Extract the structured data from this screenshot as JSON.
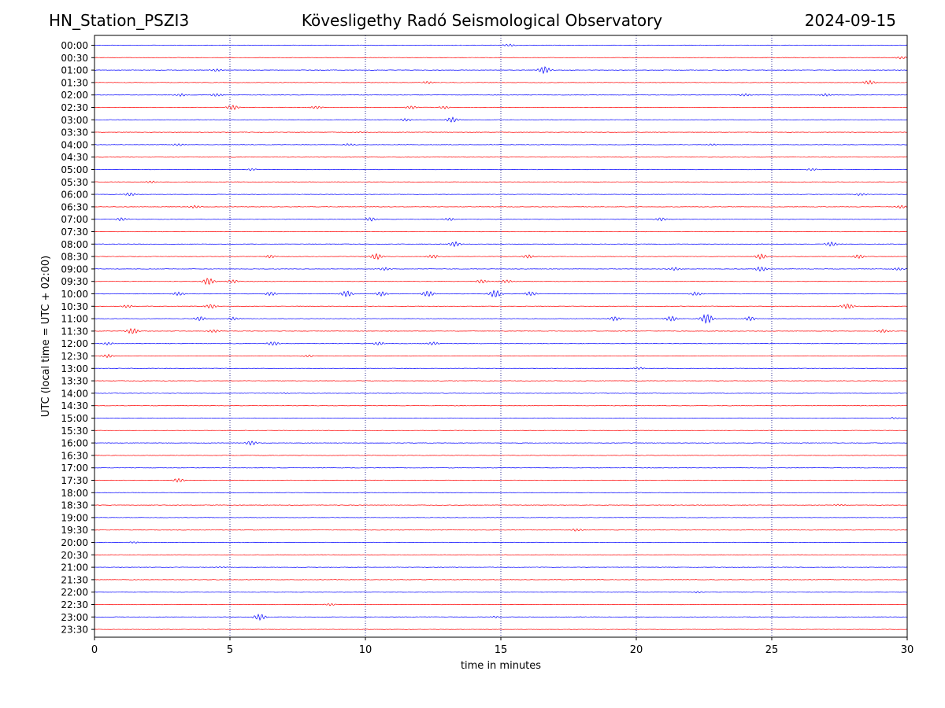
{
  "header": {
    "station": "HN_Station_PSZI3",
    "observatory": "Kövesligethy Radó Seismological Observatory",
    "date": "2024-09-15"
  },
  "chart_data": {
    "type": "line",
    "title": "Kövesligethy Radó Seismological Observatory",
    "xlabel": "time in minutes",
    "ylabel": "UTC (local time = UTC + 02:00)",
    "xlim": [
      0,
      30
    ],
    "x_ticks": [
      0,
      5,
      10,
      15,
      20,
      25,
      30
    ],
    "vertical_gridlines": [
      5,
      10,
      15,
      20,
      25
    ],
    "grid": "vertical dotted",
    "colors": {
      "even_row": "#0000ff",
      "odd_row": "#ff0000",
      "gridline": "#000080"
    },
    "rows": [
      {
        "label": "00:00",
        "events": [
          [
            15.3,
            0.5
          ]
        ]
      },
      {
        "label": "00:30",
        "events": [
          [
            29.8,
            0.5
          ]
        ]
      },
      {
        "label": "01:00",
        "events": [
          [
            4.5,
            0.5
          ],
          [
            16.6,
            1.4
          ]
        ]
      },
      {
        "label": "01:30",
        "events": [
          [
            12.3,
            0.5
          ],
          [
            28.6,
            0.8
          ]
        ]
      },
      {
        "label": "02:00",
        "events": [
          [
            3.2,
            0.5
          ],
          [
            4.5,
            0.6
          ],
          [
            24,
            0.5
          ],
          [
            27,
            0.5
          ]
        ]
      },
      {
        "label": "02:30",
        "events": [
          [
            5.1,
            0.9
          ],
          [
            8.2,
            0.5
          ],
          [
            11.7,
            0.6
          ],
          [
            12.9,
            0.5
          ]
        ]
      },
      {
        "label": "03:00",
        "events": [
          [
            11.5,
            0.5
          ],
          [
            13.2,
            1.0
          ]
        ]
      },
      {
        "label": "03:30",
        "events": [
          [
            9.8,
            0.2
          ]
        ]
      },
      {
        "label": "04:00",
        "events": [
          [
            3.1,
            0.4
          ],
          [
            9.4,
            0.4
          ],
          [
            22.8,
            0.3
          ]
        ]
      },
      {
        "label": "04:30",
        "events": []
      },
      {
        "label": "05:00",
        "events": [
          [
            5.8,
            0.4
          ],
          [
            26.5,
            0.4
          ]
        ]
      },
      {
        "label": "05:30",
        "events": [
          [
            2.1,
            0.4
          ]
        ]
      },
      {
        "label": "06:00",
        "events": [
          [
            1.3,
            0.6
          ],
          [
            28.3,
            0.5
          ]
        ]
      },
      {
        "label": "06:30",
        "events": [
          [
            3.7,
            0.5
          ],
          [
            29.8,
            0.6
          ]
        ]
      },
      {
        "label": "07:00",
        "events": [
          [
            1.0,
            0.6
          ],
          [
            10.2,
            0.7
          ],
          [
            13.1,
            0.5
          ],
          [
            20.9,
            0.6
          ]
        ]
      },
      {
        "label": "07:30",
        "events": []
      },
      {
        "label": "08:00",
        "events": [
          [
            13.3,
            0.9
          ],
          [
            27.2,
            0.8
          ]
        ]
      },
      {
        "label": "08:30",
        "events": [
          [
            6.5,
            0.6
          ],
          [
            10.4,
            1.2
          ],
          [
            12.5,
            0.7
          ],
          [
            16.0,
            0.7
          ],
          [
            24.6,
            1.0
          ],
          [
            28.2,
            0.8
          ]
        ]
      },
      {
        "label": "09:00",
        "events": [
          [
            10.7,
            0.6
          ],
          [
            21.4,
            0.6
          ],
          [
            24.6,
            0.9
          ],
          [
            29.7,
            0.5
          ]
        ]
      },
      {
        "label": "09:30",
        "events": [
          [
            4.2,
            1.3
          ],
          [
            5.1,
            0.7
          ],
          [
            14.3,
            0.7
          ],
          [
            15.2,
            0.6
          ]
        ]
      },
      {
        "label": "10:00",
        "events": [
          [
            3.1,
            0.7
          ],
          [
            6.5,
            0.7
          ],
          [
            9.3,
            1.2
          ],
          [
            10.6,
            0.9
          ],
          [
            12.3,
            1.1
          ],
          [
            14.8,
            1.4
          ],
          [
            16.1,
            0.8
          ],
          [
            22.2,
            0.7
          ]
        ]
      },
      {
        "label": "10:30",
        "events": [
          [
            1.2,
            0.6
          ],
          [
            4.3,
            0.8
          ],
          [
            27.8,
            1.0
          ]
        ]
      },
      {
        "label": "11:00",
        "events": [
          [
            3.9,
            0.8
          ],
          [
            5.1,
            0.6
          ],
          [
            19.2,
            0.8
          ],
          [
            21.3,
            1.0
          ],
          [
            22.6,
            1.9
          ],
          [
            24.2,
            0.8
          ]
        ]
      },
      {
        "label": "11:30",
        "events": [
          [
            1.4,
            1.1
          ],
          [
            4.4,
            0.6
          ],
          [
            29.1,
            0.6
          ]
        ]
      },
      {
        "label": "12:00",
        "events": [
          [
            0.5,
            0.5
          ],
          [
            6.6,
            0.8
          ],
          [
            10.5,
            0.6
          ],
          [
            12.5,
            0.6
          ]
        ]
      },
      {
        "label": "12:30",
        "events": [
          [
            0.5,
            0.6
          ],
          [
            7.9,
            0.4
          ]
        ]
      },
      {
        "label": "13:00",
        "events": [
          [
            20.1,
            0.4
          ]
        ]
      },
      {
        "label": "13:30",
        "events": []
      },
      {
        "label": "14:00",
        "events": [
          [
            7.0,
            0.2
          ]
        ]
      },
      {
        "label": "14:30",
        "events": []
      },
      {
        "label": "15:00",
        "events": [
          [
            29.5,
            0.3
          ]
        ]
      },
      {
        "label": "15:30",
        "events": []
      },
      {
        "label": "16:00",
        "events": [
          [
            5.8,
            0.8
          ]
        ]
      },
      {
        "label": "16:30",
        "events": []
      },
      {
        "label": "17:00",
        "events": []
      },
      {
        "label": "17:30",
        "events": [
          [
            3.1,
            0.7
          ]
        ]
      },
      {
        "label": "18:00",
        "events": []
      },
      {
        "label": "18:30",
        "events": [
          [
            27.5,
            0.3
          ]
        ]
      },
      {
        "label": "19:00",
        "events": []
      },
      {
        "label": "19:30",
        "events": [
          [
            17.8,
            0.5
          ]
        ]
      },
      {
        "label": "20:00",
        "events": [
          [
            1.5,
            0.3
          ]
        ]
      },
      {
        "label": "20:30",
        "events": []
      },
      {
        "label": "21:00",
        "events": [
          [
            4.7,
            0.2
          ]
        ]
      },
      {
        "label": "21:30",
        "events": []
      },
      {
        "label": "22:00",
        "events": [
          [
            22.3,
            0.3
          ]
        ]
      },
      {
        "label": "22:30",
        "events": [
          [
            8.7,
            0.4
          ]
        ]
      },
      {
        "label": "23:00",
        "events": [
          [
            6.1,
            1.2
          ],
          [
            14.8,
            0.3
          ]
        ]
      },
      {
        "label": "23:30",
        "events": []
      }
    ]
  }
}
